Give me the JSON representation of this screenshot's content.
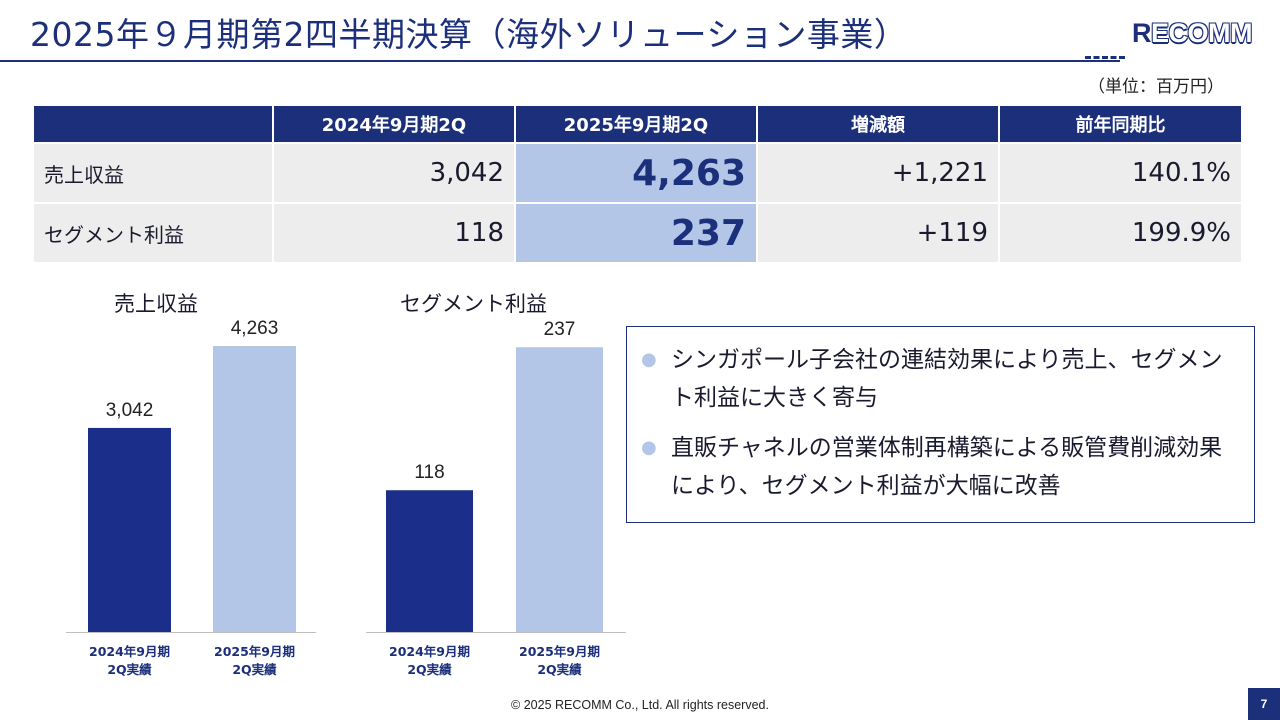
{
  "header": {
    "title": "2025年９月期第2四半期決算（海外ソリューション事業）",
    "logo_initial": "R",
    "logo_rest": "ECOMM"
  },
  "unit_note": "（単位：百万円）",
  "table": {
    "columns": [
      "",
      "2024年9月期2Q",
      "2025年9月期2Q",
      "増減額",
      "前年同期比"
    ],
    "rows": [
      {
        "label": "売上収益",
        "prev": "3,042",
        "curr": "4,263",
        "diff": "+1,221",
        "ratio": "140.1%"
      },
      {
        "label": "セグメント利益",
        "prev": "118",
        "curr": "237",
        "diff": "+119",
        "ratio": "199.9%"
      }
    ]
  },
  "chart_data": [
    {
      "type": "bar",
      "title": "売上収益",
      "categories": [
        [
          "2024年9月期",
          "2Q実績"
        ],
        [
          "2025年9月期",
          "2Q実績"
        ]
      ],
      "values": [
        3042,
        4263
      ],
      "value_labels": [
        "3,042",
        "4,263"
      ],
      "colors": [
        "#1b2f8a",
        "#b3c6e8"
      ],
      "ylim": [
        0,
        4800
      ]
    },
    {
      "type": "bar",
      "title": "セグメント利益",
      "categories": [
        [
          "2024年9月期",
          "2Q実績"
        ],
        [
          "2025年9月期",
          "2Q実績"
        ]
      ],
      "values": [
        118,
        237
      ],
      "value_labels": [
        "118",
        "237"
      ],
      "colors": [
        "#1b2f8a",
        "#b3c6e8"
      ],
      "ylim": [
        0,
        268
      ]
    }
  ],
  "notes": [
    "シンガポール子会社の連結効果により売上、セグメント利益に大きく寄与",
    "直販チャネルの営業体制再構築による販管費削減効果により、セグメント利益が大幅に改善"
  ],
  "footer": "© 2025 RECOMM Co., Ltd. All rights reserved.",
  "page_number": "7",
  "colors": {
    "primary": "#1b2f7a",
    "accent_light": "#b3c6e8",
    "cell_bg": "#ededed"
  }
}
